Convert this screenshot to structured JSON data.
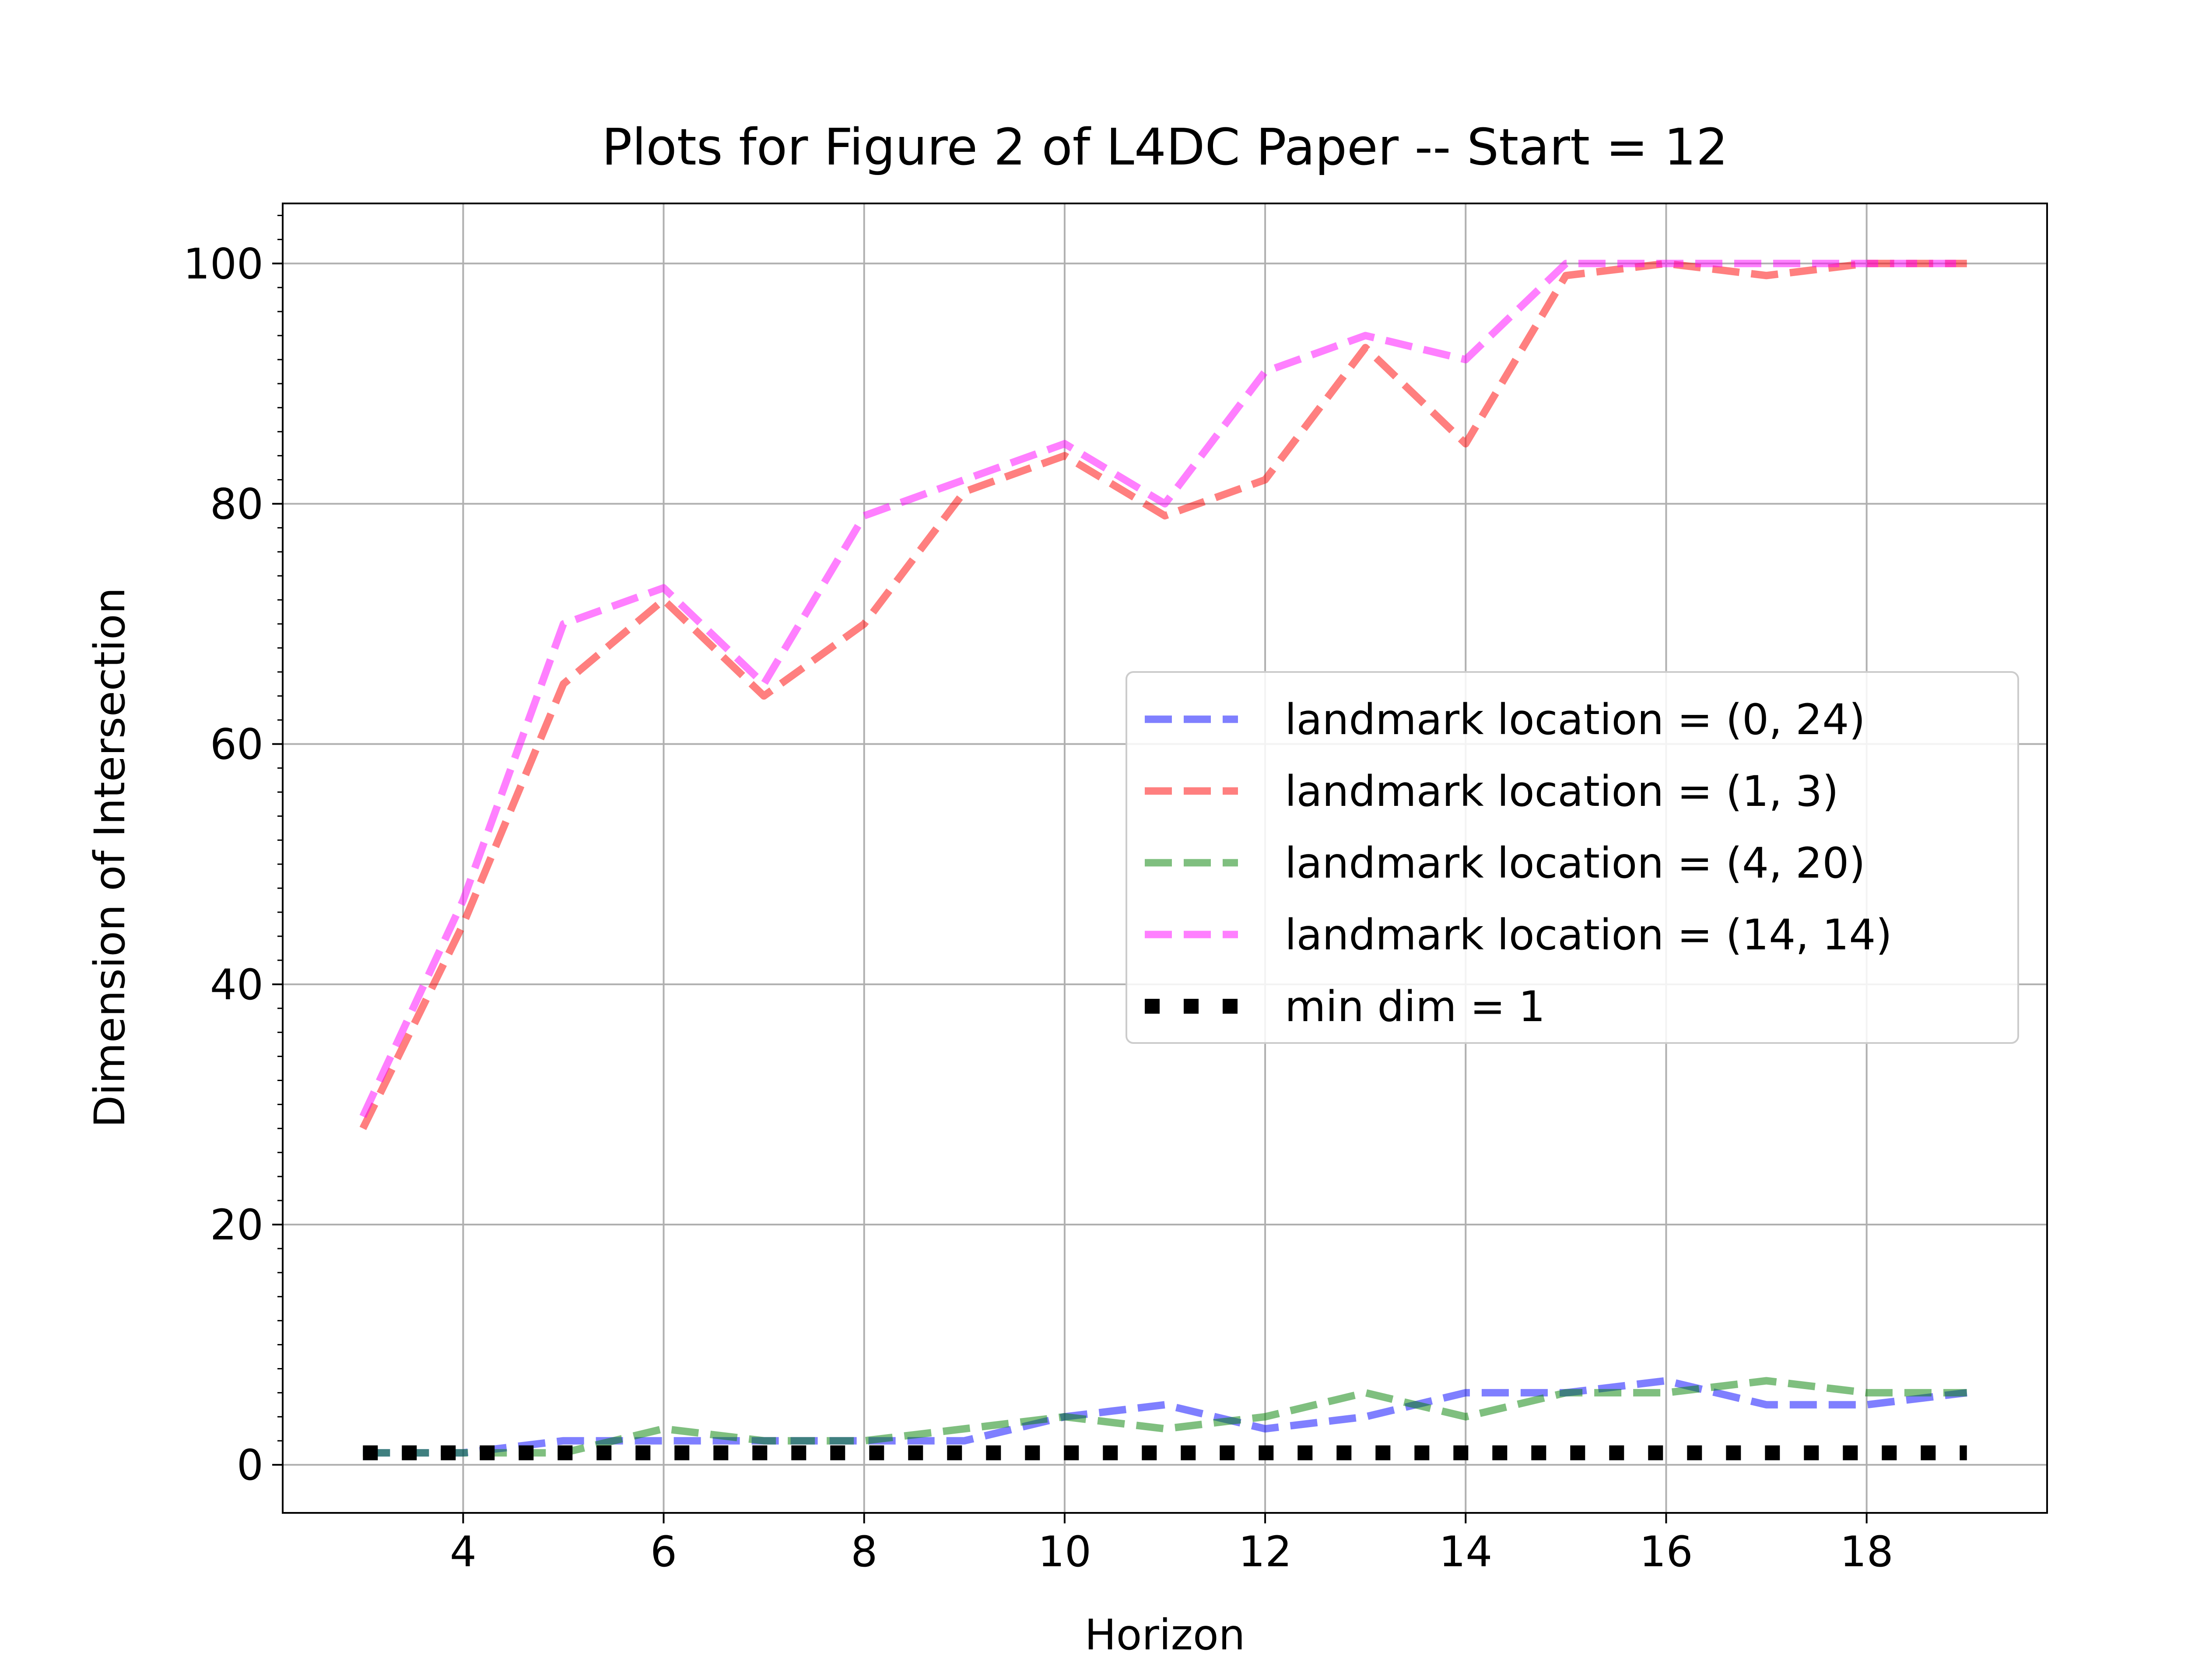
{
  "chart_data": {
    "type": "line",
    "title": "Plots for Figure 2 of L4DC Paper -- Start = 12",
    "xlabel": "Horizon",
    "ylabel": "Dimension of Intersection",
    "xlim": [
      2.2,
      19.8
    ],
    "ylim": [
      -4,
      105
    ],
    "x_ticks": [
      4,
      6,
      8,
      10,
      12,
      14,
      16,
      18
    ],
    "x_tick_labels": [
      "4",
      "6",
      "8",
      "10",
      "12",
      "14",
      "16",
      "18"
    ],
    "y_ticks": [
      0,
      20,
      40,
      60,
      80,
      100
    ],
    "y_tick_labels": [
      "0",
      "20",
      "40",
      "60",
      "80",
      "100"
    ],
    "grid": true,
    "legend_position": "center-right",
    "x": [
      3,
      4,
      5,
      6,
      7,
      8,
      9,
      10,
      11,
      12,
      13,
      14,
      15,
      16,
      17,
      18,
      19
    ],
    "series": [
      {
        "name": "landmark location = (0, 24)",
        "color": "#0000ff",
        "style": "dashed",
        "values": [
          1,
          1,
          2,
          2,
          2,
          2,
          2,
          4,
          5,
          3,
          4,
          6,
          6,
          7,
          5,
          5,
          6
        ]
      },
      {
        "name": "landmark location = (1, 3)",
        "color": "#ff0000",
        "style": "dashed",
        "values": [
          28,
          45,
          65,
          72,
          64,
          70,
          81,
          84,
          79,
          82,
          93,
          85,
          99,
          100,
          99,
          100,
          100
        ]
      },
      {
        "name": "landmark location = (4, 20)",
        "color": "#008000",
        "style": "dashed",
        "values": [
          1,
          1,
          1,
          3,
          2,
          2,
          3,
          4,
          3,
          4,
          6,
          4,
          6,
          6,
          7,
          6,
          6
        ]
      },
      {
        "name": "landmark location = (14, 14)",
        "color": "#ff00ff",
        "style": "dashed",
        "values": [
          29,
          47,
          70,
          73,
          65,
          79,
          82,
          85,
          80,
          91,
          94,
          92,
          100,
          100,
          100,
          100,
          100
        ]
      },
      {
        "name": "min dim = 1",
        "color": "#000000",
        "style": "dotted",
        "values": [
          1,
          1,
          1,
          1,
          1,
          1,
          1,
          1,
          1,
          1,
          1,
          1,
          1,
          1,
          1,
          1,
          1
        ]
      }
    ]
  }
}
